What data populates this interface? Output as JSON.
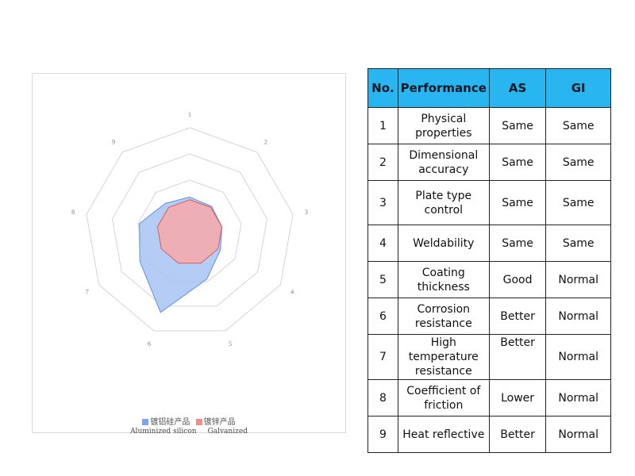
{
  "chart_data": {
    "type": "radar",
    "axes": [
      "1",
      "2",
      "3",
      "4",
      "5",
      "6",
      "7",
      "8",
      "9"
    ],
    "rings": 4,
    "rmax": 4,
    "series": [
      {
        "name": "镀铝硅产品",
        "color": "#7aa7ef",
        "values": [
          1.35,
          1.3,
          1.25,
          1.35,
          1.9,
          3.25,
          2.2,
          1.95,
          1.45
        ]
      },
      {
        "name": "镀锌产品",
        "color": "#f28b8b",
        "values": [
          1.25,
          1.25,
          1.25,
          1.25,
          1.25,
          1.25,
          1.25,
          1.25,
          1.25
        ]
      }
    ],
    "legend_captions": [
      "Aluminized silicon",
      "Galvanized"
    ]
  },
  "table": {
    "headers": [
      "No.",
      "Performance",
      "AS",
      "GI"
    ],
    "rows": [
      {
        "no": "1",
        "performance": "Physical properties",
        "as": "Same",
        "gi": "Same"
      },
      {
        "no": "2",
        "performance": "Dimensional accuracy",
        "as": "Same",
        "gi": "Same"
      },
      {
        "no": "3",
        "performance": "Plate type control",
        "as": "Same",
        "gi": "Same"
      },
      {
        "no": "4",
        "performance": "Weldability",
        "as": "Same",
        "gi": "Same"
      },
      {
        "no": "5",
        "performance": "Coating thickness",
        "as": "Good",
        "gi": "Normal"
      },
      {
        "no": "6",
        "performance": "Corrosion resistance",
        "as": "Better",
        "gi": "Normal"
      },
      {
        "no": "7",
        "performance": "High temperature resistance",
        "as": "Better",
        "gi": "Normal"
      },
      {
        "no": "8",
        "performance": "Coefficient of friction",
        "as": "Lower",
        "gi": "Normal"
      },
      {
        "no": "9",
        "performance": "Heat reflective",
        "as": "Better",
        "gi": "Normal"
      }
    ],
    "header_color": "#29b6f0"
  }
}
